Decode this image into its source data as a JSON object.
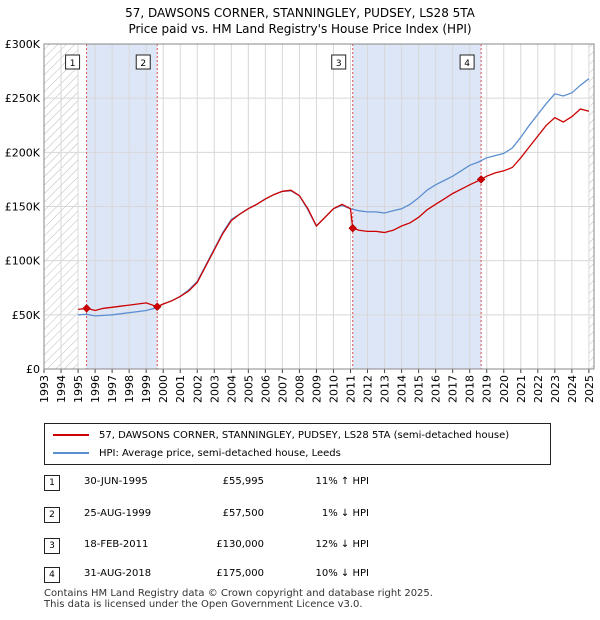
{
  "header": {
    "title_line1": "57, DAWSONS CORNER, STANNINGLEY, PUDSEY, LS28 5TA",
    "title_line2": "Price paid vs. HM Land Registry's House Price Index (HPI)"
  },
  "chart_data": {
    "type": "line",
    "ylabel": "",
    "xlabel": "",
    "xlim": [
      1993,
      2025.3
    ],
    "ylim": [
      0,
      300000
    ],
    "y_ticks": [
      0,
      50000,
      100000,
      150000,
      200000,
      250000,
      300000
    ],
    "y_tick_labels": [
      "£0",
      "£50K",
      "£100K",
      "£150K",
      "£200K",
      "£250K",
      "£300K"
    ],
    "x_ticks": [
      1993,
      1994,
      1995,
      1996,
      1997,
      1998,
      1999,
      2000,
      2001,
      2002,
      2003,
      2004,
      2005,
      2006,
      2007,
      2008,
      2009,
      2010,
      2011,
      2012,
      2013,
      2014,
      2015,
      2016,
      2017,
      2018,
      2019,
      2020,
      2021,
      2022,
      2023,
      2024,
      2025
    ],
    "hatched_before": 1995.0,
    "hatched_after": 2025.0,
    "shaded_spans": [
      [
        1995.5,
        1999.65
      ],
      [
        2011.13,
        2018.67
      ]
    ],
    "colors": {
      "property": "#cc0000",
      "hpi": "#5b8fd0",
      "shade": "#dde6f6",
      "marker_line": "#e05050"
    },
    "series": [
      {
        "name": "57, DAWSONS CORNER, STANNINGLEY, PUDSEY, LS28 5TA (semi-detached house)",
        "x": [
          1995.0,
          1995.5,
          1996.0,
          1996.5,
          1997.0,
          1997.5,
          1998.0,
          1998.5,
          1999.0,
          1999.65,
          2000.0,
          2000.5,
          2001.0,
          2001.5,
          2002.0,
          2002.5,
          2003.0,
          2003.5,
          2004.0,
          2004.5,
          2005.0,
          2005.5,
          2006.0,
          2006.5,
          2007.0,
          2007.5,
          2008.0,
          2008.5,
          2009.0,
          2009.5,
          2010.0,
          2010.5,
          2011.0,
          2011.13,
          2011.5,
          2012.0,
          2012.5,
          2013.0,
          2013.5,
          2014.0,
          2014.5,
          2015.0,
          2015.5,
          2016.0,
          2016.5,
          2017.0,
          2017.5,
          2018.0,
          2018.67,
          2019.0,
          2019.5,
          2020.0,
          2020.5,
          2021.0,
          2021.5,
          2022.0,
          2022.5,
          2023.0,
          2023.5,
          2024.0,
          2024.5,
          2025.0
        ],
        "values": [
          55000,
          55995,
          54000,
          56000,
          57000,
          58000,
          59000,
          60000,
          61000,
          57500,
          60000,
          63000,
          67000,
          72000,
          80000,
          95000,
          110000,
          125000,
          137000,
          143000,
          148000,
          152000,
          157000,
          161000,
          164000,
          165000,
          160000,
          148000,
          132000,
          140000,
          148000,
          152000,
          148000,
          130000,
          128000,
          127000,
          127000,
          126000,
          128000,
          132000,
          135000,
          140000,
          147000,
          152000,
          157000,
          162000,
          166000,
          170000,
          175000,
          178000,
          181000,
          183000,
          186000,
          195000,
          205000,
          215000,
          225000,
          232000,
          228000,
          233000,
          240000,
          238000
        ]
      },
      {
        "name": "HPI: Average price, semi-detached house, Leeds",
        "x": [
          1995.0,
          1995.5,
          1996.0,
          1996.5,
          1997.0,
          1997.5,
          1998.0,
          1998.5,
          1999.0,
          1999.5,
          2000.0,
          2000.5,
          2001.0,
          2001.5,
          2002.0,
          2002.5,
          2003.0,
          2003.5,
          2004.0,
          2004.5,
          2005.0,
          2005.5,
          2006.0,
          2006.5,
          2007.0,
          2007.5,
          2008.0,
          2008.5,
          2009.0,
          2009.5,
          2010.0,
          2010.5,
          2011.0,
          2011.5,
          2012.0,
          2012.5,
          2013.0,
          2013.5,
          2014.0,
          2014.5,
          2015.0,
          2015.5,
          2016.0,
          2016.5,
          2017.0,
          2017.5,
          2018.0,
          2018.5,
          2019.0,
          2019.5,
          2020.0,
          2020.5,
          2021.0,
          2021.5,
          2022.0,
          2022.5,
          2023.0,
          2023.5,
          2024.0,
          2024.5,
          2025.0
        ],
        "values": [
          50000,
          50500,
          49000,
          49500,
          50000,
          51000,
          52000,
          53000,
          54000,
          56000,
          60000,
          63000,
          67000,
          73000,
          81000,
          96000,
          111000,
          126000,
          138000,
          143000,
          148000,
          152000,
          157000,
          161000,
          164000,
          164500,
          160000,
          147000,
          132000,
          140000,
          148000,
          151000,
          148000,
          146000,
          145000,
          145000,
          144000,
          146000,
          148000,
          152000,
          158000,
          165000,
          170000,
          174000,
          178000,
          183000,
          188000,
          191000,
          195000,
          197000,
          199000,
          204000,
          214000,
          225000,
          235000,
          245000,
          254000,
          252000,
          255000,
          262000,
          268000
        ]
      }
    ],
    "sales": [
      {
        "id": "1",
        "x": 1995.5,
        "value": 55995
      },
      {
        "id": "2",
        "x": 1999.65,
        "value": 57500
      },
      {
        "id": "3",
        "x": 2011.13,
        "value": 130000
      },
      {
        "id": "4",
        "x": 2018.67,
        "value": 175000
      }
    ]
  },
  "legend": {
    "property_label": "57, DAWSONS CORNER, STANNINGLEY, PUDSEY, LS28 5TA (semi-detached house)",
    "hpi_label": "HPI: Average price, semi-detached house, Leeds"
  },
  "transactions": [
    {
      "num": "1",
      "date": "30-JUN-1995",
      "price": "£55,995",
      "hpi": "11% ↑ HPI"
    },
    {
      "num": "2",
      "date": "25-AUG-1999",
      "price": "£57,500",
      "hpi": "1% ↓ HPI"
    },
    {
      "num": "3",
      "date": "18-FEB-2011",
      "price": "£130,000",
      "hpi": "12% ↓ HPI"
    },
    {
      "num": "4",
      "date": "31-AUG-2018",
      "price": "£175,000",
      "hpi": "10% ↓ HPI"
    }
  ],
  "footer": {
    "line1": "Contains HM Land Registry data © Crown copyright and database right 2025.",
    "line2": "This data is licensed under the Open Government Licence v3.0."
  }
}
